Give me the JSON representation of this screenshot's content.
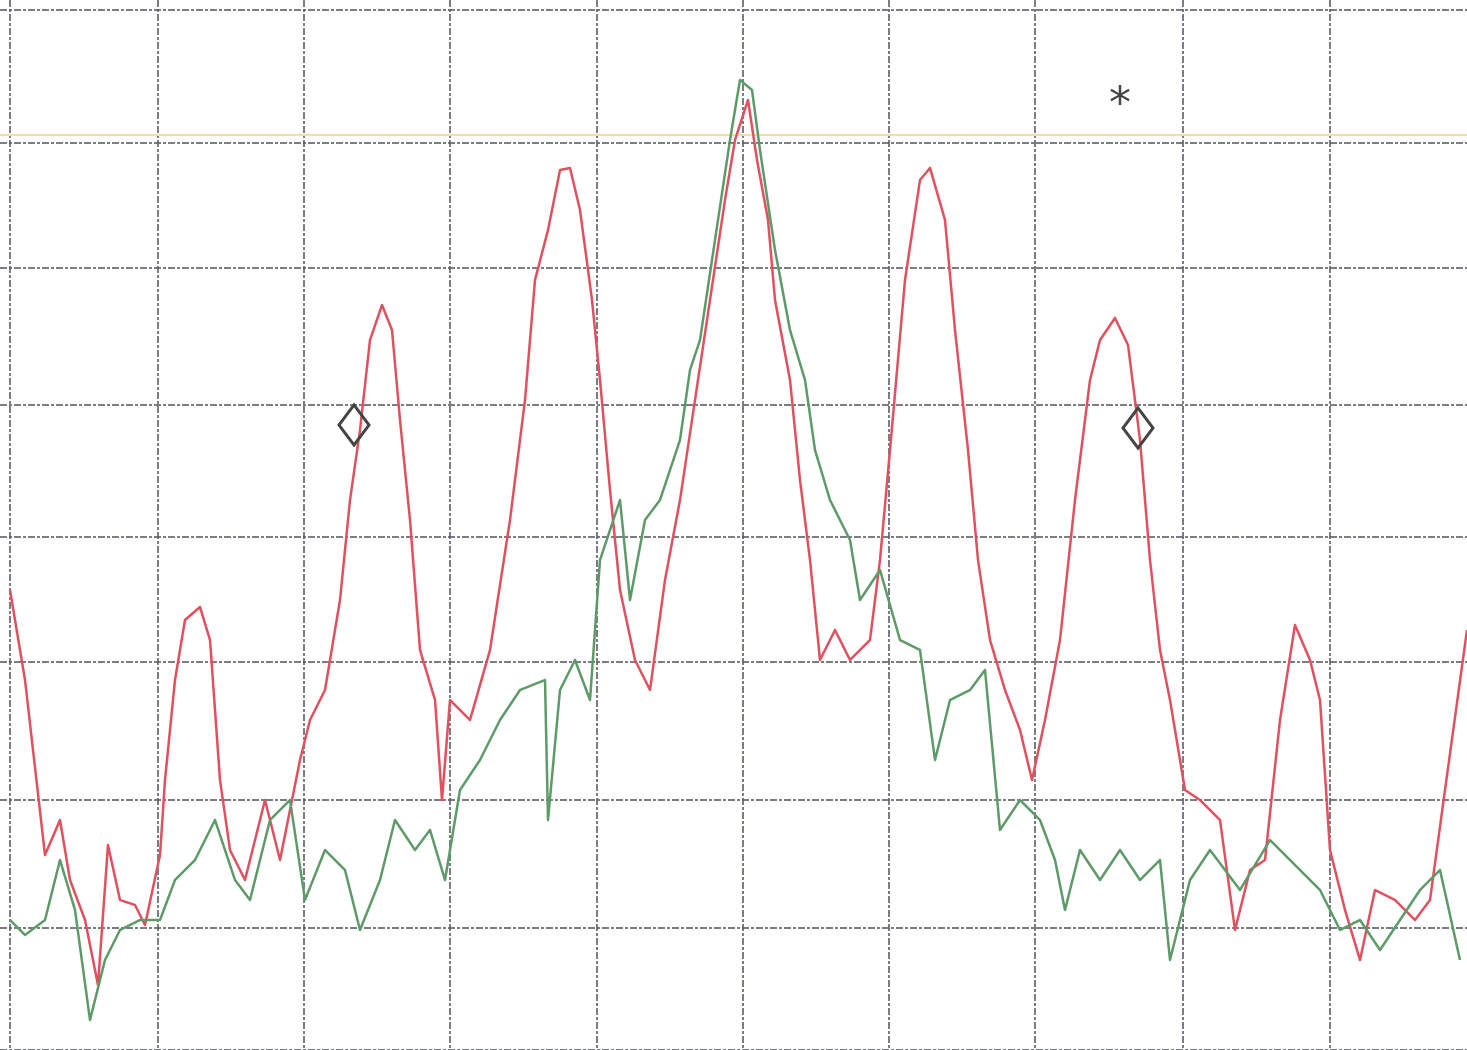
{
  "chart_data": {
    "type": "line",
    "xlim": [
      0,
      1467
    ],
    "ylim": [
      0,
      1050
    ],
    "xticks": [
      10,
      158,
      304,
      450,
      597,
      743,
      889,
      1035,
      1183,
      1330
    ],
    "yticks": [
      0,
      122,
      250,
      388,
      513,
      645,
      782,
      907,
      1040
    ],
    "grid": true,
    "grid_color": "#5a5f66",
    "reference_line": {
      "value": 915,
      "color": "#f3dfa0"
    },
    "annotations": [
      {
        "text": "*",
        "x": 1120,
        "y": 947
      }
    ],
    "markers": {
      "color": "#444444",
      "x": [
        354,
        1138
      ],
      "values": [
        625,
        622
      ]
    },
    "series": [
      {
        "color": "#e0505e",
        "x": [
          10,
          25,
          45,
          60,
          70,
          85,
          98,
          108,
          120,
          135,
          145,
          160,
          165,
          175,
          185,
          200,
          210,
          220,
          230,
          245,
          265,
          280,
          300,
          310,
          325,
          340,
          350,
          360,
          370,
          382,
          392,
          400,
          410,
          420,
          435,
          442,
          450,
          470,
          490,
          510,
          525,
          535,
          548,
          560,
          570,
          580,
          592,
          600,
          610,
          620,
          635,
          650,
          665,
          680,
          695,
          710,
          725,
          735,
          748,
          757,
          768,
          775,
          790,
          800,
          810,
          820,
          835,
          850,
          870,
          880,
          890,
          905,
          920,
          930,
          945,
          955,
          968,
          978,
          990,
          1005,
          1020,
          1032,
          1045,
          1060,
          1075,
          1090,
          1100,
          1115,
          1128,
          1140,
          1150,
          1160,
          1170,
          1185,
          1200,
          1220,
          1235,
          1250,
          1265,
          1280,
          1295,
          1310,
          1320,
          1330,
          1345,
          1360,
          1375,
          1395,
          1415,
          1430,
          1445,
          1467
        ],
        "values": [
          460,
          370,
          195,
          230,
          170,
          130,
          65,
          205,
          150,
          145,
          125,
          195,
          270,
          370,
          430,
          443,
          410,
          270,
          200,
          170,
          250,
          190,
          290,
          330,
          360,
          450,
          550,
          620,
          710,
          745,
          720,
          630,
          530,
          400,
          350,
          250,
          350,
          330,
          400,
          530,
          650,
          770,
          820,
          880,
          882,
          840,
          750,
          670,
          560,
          460,
          390,
          360,
          470,
          550,
          650,
          750,
          850,
          910,
          950,
          890,
          830,
          750,
          670,
          570,
          490,
          390,
          420,
          390,
          410,
          490,
          600,
          770,
          870,
          882,
          830,
          720,
          600,
          490,
          410,
          360,
          320,
          270,
          330,
          410,
          550,
          670,
          710,
          732,
          705,
          610,
          490,
          400,
          350,
          260,
          250,
          230,
          120,
          180,
          190,
          330,
          425,
          390,
          350,
          200,
          140,
          90,
          160,
          150,
          130,
          150,
          260,
          420
        ]
      },
      {
        "color": "#5e9a68",
        "x": [
          10,
          25,
          45,
          60,
          75,
          90,
          105,
          120,
          140,
          160,
          175,
          195,
          215,
          235,
          250,
          270,
          290,
          305,
          325,
          345,
          360,
          380,
          395,
          415,
          430,
          445,
          460,
          480,
          500,
          520,
          545,
          548,
          560,
          575,
          590,
          600,
          620,
          630,
          645,
          660,
          680,
          690,
          700,
          715,
          730,
          740,
          752,
          760,
          775,
          790,
          805,
          815,
          830,
          850,
          860,
          880,
          900,
          920,
          935,
          950,
          970,
          985,
          1000,
          1020,
          1040,
          1055,
          1065,
          1080,
          1100,
          1120,
          1140,
          1160,
          1170,
          1190,
          1210,
          1240,
          1270,
          1300,
          1320,
          1340,
          1360,
          1380,
          1400,
          1420,
          1440,
          1460
        ],
        "values": [
          130,
          115,
          130,
          190,
          140,
          30,
          90,
          120,
          130,
          130,
          170,
          190,
          230,
          170,
          150,
          230,
          250,
          150,
          200,
          180,
          120,
          170,
          230,
          200,
          220,
          170,
          260,
          290,
          330,
          360,
          370,
          230,
          360,
          390,
          350,
          490,
          550,
          450,
          530,
          550,
          610,
          680,
          710,
          810,
          910,
          970,
          960,
          900,
          800,
          720,
          670,
          600,
          550,
          510,
          450,
          480,
          410,
          400,
          290,
          350,
          360,
          380,
          220,
          250,
          230,
          190,
          140,
          200,
          170,
          200,
          170,
          190,
          90,
          170,
          200,
          160,
          210,
          180,
          160,
          120,
          130,
          100,
          130,
          160,
          180,
          90
        ]
      }
    ]
  }
}
